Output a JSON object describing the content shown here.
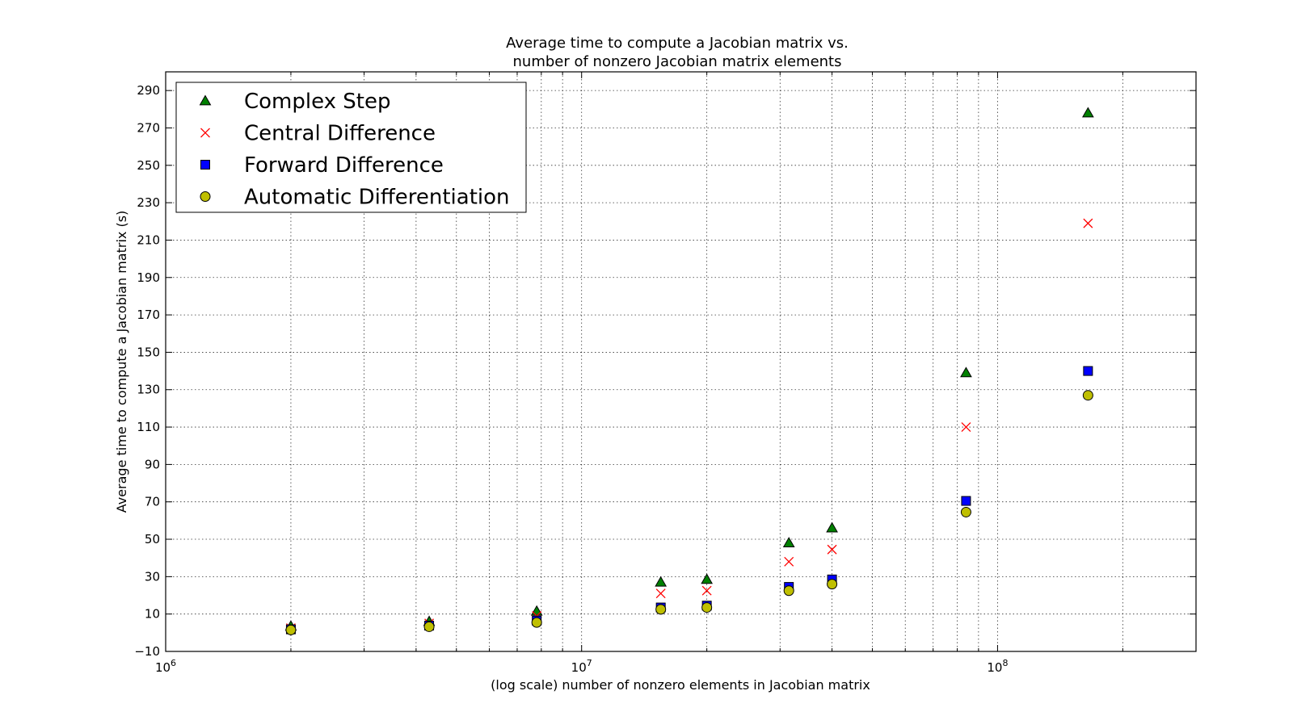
{
  "chart_data": {
    "type": "scatter",
    "title": "Average time to compute a Jacobian matrix vs.",
    "subtitle": "number of nonzero Jacobian matrix elements",
    "xlabel": "(log scale) number of nonzero elements in Jacobian matrix",
    "ylabel": "Average time to compute a Jacobian matrix (s)",
    "x_scale": "log",
    "xlim": [
      1000000,
      300000000
    ],
    "ylim": [
      -10,
      300
    ],
    "grid": true,
    "legend_position": "top-left",
    "x_ticks": [
      {
        "value": 1000000,
        "base": "10",
        "exp": "6"
      },
      {
        "value": 10000000,
        "base": "10",
        "exp": "7"
      },
      {
        "value": 100000000,
        "base": "10",
        "exp": "8"
      }
    ],
    "y_ticks": [
      "−10",
      "10",
      "30",
      "50",
      "70",
      "90",
      "110",
      "130",
      "150",
      "170",
      "190",
      "210",
      "230",
      "250",
      "270",
      "290"
    ],
    "x": [
      2000000,
      4300000,
      7800000,
      15500000,
      20000000,
      31500000,
      40000000,
      84000000,
      165000000
    ],
    "series": [
      {
        "name": "Complex Step",
        "marker": "triangle",
        "color": "#008000",
        "values": [
          3.5,
          6,
          11.5,
          27,
          28.5,
          48,
          56,
          139,
          278
        ]
      },
      {
        "name": "Central Difference",
        "marker": "x",
        "color": "#ff0000",
        "values": [
          2.5,
          5,
          9,
          21,
          22.5,
          38,
          44.5,
          110,
          219
        ]
      },
      {
        "name": "Forward Difference",
        "marker": "square",
        "color": "#0000ff",
        "values": [
          1.8,
          3.8,
          6.5,
          13.5,
          14.5,
          24.5,
          28.5,
          70.5,
          140
        ]
      },
      {
        "name": "Automatic Differentiation",
        "marker": "circle",
        "color": "#bfbf00",
        "values": [
          1.5,
          3.2,
          5.5,
          12.5,
          13.5,
          22.5,
          26,
          64.5,
          127
        ]
      }
    ]
  }
}
